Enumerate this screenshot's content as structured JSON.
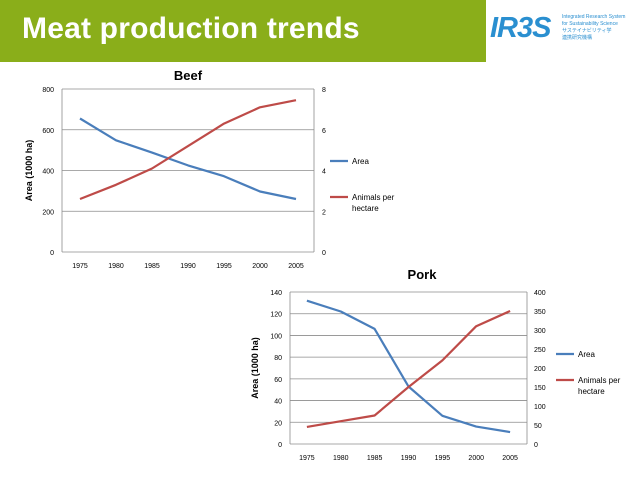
{
  "header": {
    "title": "Meat production trends"
  },
  "logo": {
    "text": "IR3S",
    "tagline_1": "Integrated Research System",
    "tagline_2": "for Sustainability Science",
    "tagline_3": "サステイナビリティ学",
    "tagline_4": "連携研究機構",
    "accent_color": "#2a8fd0"
  },
  "colors": {
    "header_bg": "#8aae1a",
    "area_series": "#4a7ebb",
    "animals_series": "#be4b48"
  },
  "chart_data": [
    {
      "type": "line",
      "title": "Beef",
      "ylabel": "Area (1000 ha)",
      "x": [
        "1975",
        "1980",
        "1985",
        "1990",
        "1995",
        "2000",
        "2005"
      ],
      "ylim": [
        0,
        800
      ],
      "yticks": [
        "0",
        "200",
        "400",
        "600",
        "800"
      ],
      "y2lim": [
        0,
        8
      ],
      "y2ticks": [
        "0",
        "2",
        "4",
        "6",
        "8"
      ],
      "series": [
        {
          "name": "Area",
          "axis": "left",
          "values": [
            655,
            548,
            488,
            425,
            372,
            297,
            260
          ],
          "color": "#4a7ebb"
        },
        {
          "name": "Animals per hectare",
          "axis": "right",
          "values": [
            2.6,
            3.3,
            4.1,
            5.2,
            6.3,
            7.1,
            7.45
          ],
          "color": "#be4b48"
        }
      ],
      "legend": {
        "position": "right",
        "entries": [
          {
            "label_lines": [
              "Area"
            ]
          },
          {
            "label_lines": [
              "Animals per",
              "hectare"
            ]
          }
        ]
      },
      "grid": true
    },
    {
      "type": "line",
      "title": "Pork",
      "ylabel": "Area (1000 ha)",
      "x": [
        "1975",
        "1980",
        "1985",
        "1990",
        "1995",
        "2000",
        "2005"
      ],
      "ylim": [
        0,
        140
      ],
      "yticks": [
        "0",
        "20",
        "40",
        "60",
        "80",
        "100",
        "120",
        "140"
      ],
      "y2lim": [
        0,
        400
      ],
      "y2ticks": [
        "0",
        "50",
        "100",
        "150",
        "200",
        "250",
        "300",
        "350",
        "400"
      ],
      "series": [
        {
          "name": "Area",
          "axis": "left",
          "values": [
            132,
            122,
            106,
            53,
            26,
            16,
            11
          ],
          "color": "#4a7ebb"
        },
        {
          "name": "Animals per hectare",
          "axis": "right",
          "values": [
            45,
            60,
            75,
            150,
            220,
            310,
            350
          ],
          "color": "#be4b48"
        }
      ],
      "legend": {
        "position": "right",
        "entries": [
          {
            "label_lines": [
              "Area"
            ]
          },
          {
            "label_lines": [
              "Animals per",
              "hectare"
            ]
          }
        ]
      },
      "grid": true
    }
  ]
}
